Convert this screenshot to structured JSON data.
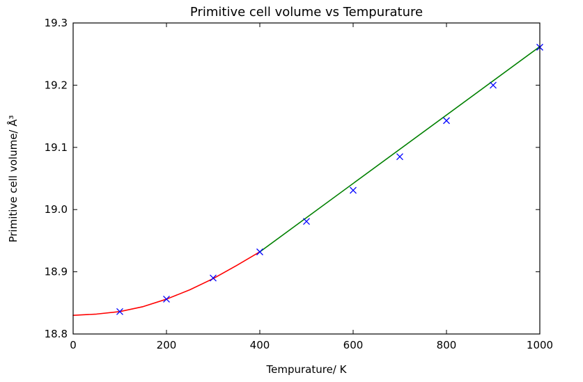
{
  "chart_data": {
    "type": "line",
    "title": "Primitive cell volume vs Tempurature",
    "xlabel": "Tempurature/ K",
    "ylabel": "Primitive cell volume/ Å³",
    "xlim": [
      0,
      1000
    ],
    "ylim": [
      18.8,
      19.3
    ],
    "grid": false,
    "legend_position": "none",
    "xticks": {
      "values": [
        0,
        200,
        400,
        600,
        800,
        1000
      ],
      "labels": [
        "0",
        "200",
        "400",
        "600",
        "800",
        "1000"
      ]
    },
    "yticks": {
      "values": [
        18.8,
        18.9,
        19.0,
        19.1,
        19.2,
        19.3
      ],
      "labels": [
        "18.8",
        "18.9",
        "19.0",
        "19.1",
        "19.2",
        "19.3"
      ]
    },
    "series": [
      {
        "name": "measured-points",
        "type": "scatter",
        "marker": "x",
        "color": "#0000ff",
        "x": [
          100,
          200,
          300,
          400,
          500,
          600,
          700,
          800,
          900,
          1000
        ],
        "y": [
          18.836,
          18.856,
          18.89,
          18.932,
          18.981,
          19.031,
          19.085,
          19.143,
          19.2,
          19.261
        ]
      },
      {
        "name": "low-temperature-fit",
        "type": "line",
        "color": "#ff0000",
        "points": [
          [
            0,
            18.83
          ],
          [
            50,
            18.832
          ],
          [
            100,
            18.836
          ],
          [
            150,
            18.844
          ],
          [
            200,
            18.856
          ],
          [
            250,
            18.871
          ],
          [
            300,
            18.889
          ],
          [
            350,
            18.91
          ],
          [
            400,
            18.932
          ]
        ]
      },
      {
        "name": "high-temperature-fit",
        "type": "line",
        "color": "#008000",
        "points": [
          [
            400,
            18.932
          ],
          [
            1000,
            19.262
          ]
        ]
      }
    ],
    "frame_color": "#000000",
    "background_color": "#ffffff"
  }
}
